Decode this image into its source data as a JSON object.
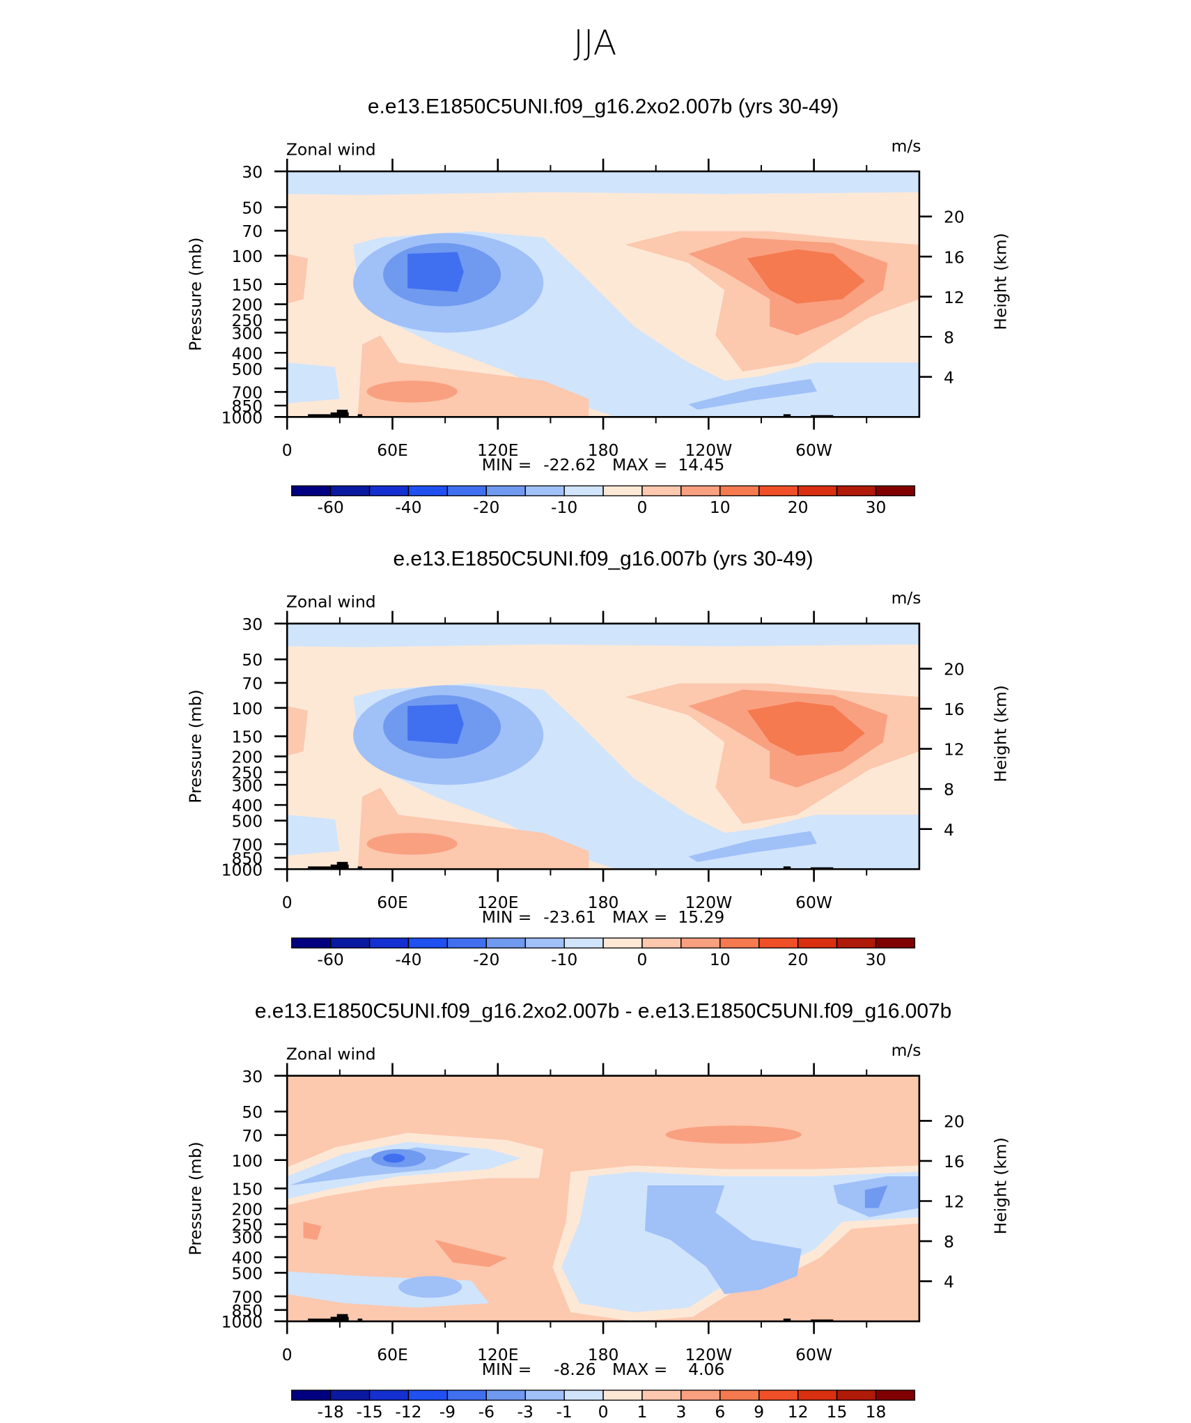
{
  "title": "JJA",
  "chart_data": [
    {
      "type": "contour",
      "title": "e.e13.E1850C5UNI.f09_g16.2xo2.007b (yrs 30-49)",
      "left_string": "Zonal wind",
      "units": "m/s",
      "ylabel": "Pressure (mb)",
      "y2label": "Height (km)",
      "min_label": "MIN =",
      "min": -22.62,
      "max_label": "MAX =",
      "max": 14.45,
      "xlim": [
        0,
        360
      ],
      "xticks": [
        0,
        {
          "value": 60,
          "label": "60E"
        },
        {
          "value": 120,
          "label": "120E"
        },
        180,
        {
          "value": 240,
          "label": "120W"
        },
        {
          "value": 300,
          "label": "60W"
        }
      ],
      "ylim": [
        1000,
        30
      ],
      "yscale": "log",
      "yticks": [
        30,
        50,
        70,
        100,
        150,
        200,
        250,
        300,
        400,
        500,
        700,
        850,
        1000
      ],
      "y2lim": [
        0,
        24.5
      ],
      "y2ticks": [
        4,
        8,
        12,
        16,
        20
      ],
      "colorbar": {
        "levels": [
          -60,
          -50,
          -40,
          -30,
          -20,
          -15,
          -10,
          -5,
          0,
          5,
          10,
          15,
          20,
          25,
          30
        ],
        "ticks": [
          -60,
          -40,
          -20,
          -10,
          0,
          10,
          20,
          30
        ],
        "colors": [
          "#000080",
          "#0a1aa0",
          "#1530d0",
          "#2050f0",
          "#4070f0",
          "#7099f0",
          "#a0c0f8",
          "#d0e4fc",
          "#fde8d6",
          "#fcc8ae",
          "#f9a080",
          "#f57a50",
          "#f05028",
          "#d83010",
          "#b01a08",
          "#800000"
        ]
      }
    },
    {
      "type": "contour",
      "title": "e.e13.E1850C5UNI.f09_g16.007b (yrs 30-49)",
      "left_string": "Zonal wind",
      "units": "m/s",
      "ylabel": "Pressure (mb)",
      "y2label": "Height (km)",
      "min_label": "MIN =",
      "min": -23.61,
      "max_label": "MAX =",
      "max": 15.29,
      "xlim": [
        0,
        360
      ],
      "xticks": [
        0,
        {
          "value": 60,
          "label": "60E"
        },
        {
          "value": 120,
          "label": "120E"
        },
        180,
        {
          "value": 240,
          "label": "120W"
        },
        {
          "value": 300,
          "label": "60W"
        }
      ],
      "ylim": [
        1000,
        30
      ],
      "yscale": "log",
      "yticks": [
        30,
        50,
        70,
        100,
        150,
        200,
        250,
        300,
        400,
        500,
        700,
        850,
        1000
      ],
      "y2lim": [
        0,
        24.5
      ],
      "y2ticks": [
        4,
        8,
        12,
        16,
        20
      ],
      "colorbar": {
        "levels": [
          -60,
          -50,
          -40,
          -30,
          -20,
          -15,
          -10,
          -5,
          0,
          5,
          10,
          15,
          20,
          25,
          30
        ],
        "ticks": [
          -60,
          -40,
          -20,
          -10,
          0,
          10,
          20,
          30
        ],
        "colors": [
          "#000080",
          "#0a1aa0",
          "#1530d0",
          "#2050f0",
          "#4070f0",
          "#7099f0",
          "#a0c0f8",
          "#d0e4fc",
          "#fde8d6",
          "#fcc8ae",
          "#f9a080",
          "#f57a50",
          "#f05028",
          "#d83010",
          "#b01a08",
          "#800000"
        ]
      }
    },
    {
      "type": "contour",
      "title": "e.e13.E1850C5UNI.f09_g16.2xo2.007b - e.e13.E1850C5UNI.f09_g16.007b",
      "left_string": "Zonal wind",
      "units": "m/s",
      "ylabel": "Pressure (mb)",
      "y2label": "Height (km)",
      "min_label": "MIN =",
      "min": -8.26,
      "max_label": "MAX =",
      "max": 4.06,
      "xlim": [
        0,
        360
      ],
      "xticks": [
        0,
        {
          "value": 60,
          "label": "60E"
        },
        {
          "value": 120,
          "label": "120E"
        },
        180,
        {
          "value": 240,
          "label": "120W"
        },
        {
          "value": 300,
          "label": "60W"
        }
      ],
      "ylim": [
        1000,
        30
      ],
      "yscale": "log",
      "yticks": [
        30,
        50,
        70,
        100,
        150,
        200,
        250,
        300,
        400,
        500,
        700,
        850,
        1000
      ],
      "y2lim": [
        0,
        24.5
      ],
      "y2ticks": [
        4,
        8,
        12,
        16,
        20
      ],
      "colorbar": {
        "levels": [
          -18,
          -15,
          -12,
          -9,
          -6,
          -3,
          -1,
          0,
          1,
          3,
          6,
          9,
          12,
          15,
          18
        ],
        "ticks": [
          -18,
          -15,
          -12,
          -9,
          -6,
          -3,
          -1,
          0,
          1,
          3,
          6,
          9,
          12,
          15,
          18
        ],
        "colors": [
          "#000080",
          "#0a1aa0",
          "#1530d0",
          "#2050f0",
          "#4070f0",
          "#7099f0",
          "#a0c0f8",
          "#d0e4fc",
          "#fde8d6",
          "#fcc8ae",
          "#f9a080",
          "#f57a50",
          "#f05028",
          "#d83010",
          "#b01a08",
          "#800000"
        ]
      }
    }
  ]
}
